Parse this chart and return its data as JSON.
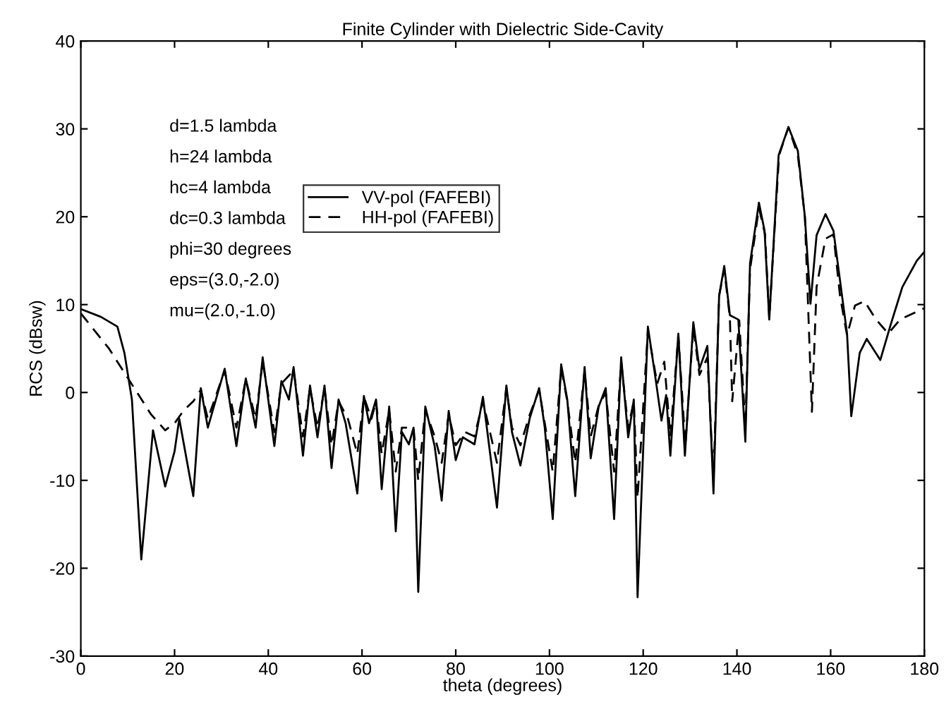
{
  "chart_data": {
    "type": "line",
    "title": "Finite Cylinder with Dielectric Side-Cavity",
    "xlabel": "theta (degrees)",
    "ylabel": "RCS (dBsw)",
    "xlim": [
      0,
      180
    ],
    "ylim": [
      -30,
      40
    ],
    "xticks": [
      0,
      20,
      40,
      60,
      80,
      100,
      120,
      140,
      160,
      180
    ],
    "yticks": [
      -30,
      -20,
      -10,
      0,
      10,
      20,
      30,
      40
    ],
    "grid": false,
    "legend": "top",
    "marker": "none",
    "annotations": [
      "d=1.5 lambda",
      "h=24 lambda",
      "hc=4 lambda",
      "dc=0.3 lambda",
      "phi=30 degrees",
      "eps=(3.0,-2.0)",
      "mu=(2.0,-1.0)"
    ],
    "series": [
      {
        "name": "VV-pol (FAFEBI)",
        "color": "#000000",
        "line_style": "solid",
        "x": [
          0,
          4.3,
          7.8,
          9.3,
          10.9,
          12.9,
          15.4,
          18,
          20,
          21,
          24,
          25.6,
          27.1,
          30.7,
          33.2,
          35.2,
          37.3,
          38.8,
          41.3,
          42.8,
          44.4,
          45.4,
          47.4,
          48.9,
          50.5,
          52,
          53.5,
          55,
          56.5,
          59,
          60.4,
          61.5,
          63,
          64.2,
          65.8,
          67.2,
          68.5,
          70,
          71,
          72,
          73.5,
          75.5,
          77,
          78.5,
          80,
          81.5,
          84,
          85.8,
          88.8,
          90.8,
          92,
          93.8,
          95.8,
          97.8,
          99,
          100.7,
          102.5,
          103.8,
          105.5,
          107.5,
          108.8,
          110.5,
          112,
          113.8,
          115.3,
          116.8,
          118,
          118.8,
          121,
          122.5,
          123.9,
          124.9,
          125.8,
          127.5,
          128.9,
          130.7,
          132,
          133.7,
          135,
          136.2,
          137.3,
          138.5,
          140.3,
          141.8,
          142.8,
          144.7,
          145.9,
          146.9,
          148.9,
          151,
          153,
          154.5,
          155.7,
          157,
          158.9,
          160.6,
          163.5,
          164.4,
          166.2,
          167.7,
          170.6,
          172.8,
          175.3,
          178.4,
          180
        ],
        "values": [
          9.5,
          8.6,
          7.5,
          4.5,
          -0.8,
          -19,
          -4.3,
          -10.7,
          -6.7,
          -3,
          -11.8,
          0.5,
          -4,
          2.7,
          -6.1,
          1.6,
          -4,
          4,
          -6.1,
          1.3,
          -0.8,
          2.9,
          -7.2,
          0.8,
          -5.1,
          0.8,
          -8.6,
          -0.8,
          -3.5,
          -11.5,
          -0.4,
          -3.5,
          -0.8,
          -11,
          -1.6,
          -15.8,
          -4.5,
          -5.9,
          -4,
          -22.7,
          -1.6,
          -6.1,
          -12.3,
          -2.1,
          -7.7,
          -5.1,
          -5.9,
          -0.5,
          -13.1,
          0.8,
          -4.5,
          -8.3,
          -2.9,
          0.5,
          -4,
          -14.4,
          3.2,
          -0.8,
          -11.8,
          2.9,
          -7.5,
          -1.6,
          0.5,
          -14.4,
          4,
          -5.1,
          -0.8,
          -23.3,
          7.5,
          2.1,
          -3.2,
          -0.3,
          -7.2,
          6.7,
          -7.2,
          8,
          2.7,
          5.3,
          -11.5,
          11,
          14.4,
          8.8,
          8.3,
          -5.6,
          14.7,
          21.6,
          18.4,
          8.3,
          27,
          30.2,
          27.5,
          20,
          10.1,
          17.9,
          20.3,
          18.4,
          6.7,
          -2.7,
          4.5,
          6.1,
          3.7,
          7.7,
          12,
          15,
          16
        ]
      },
      {
        "name": "HH-pol (FAFEBI)",
        "color": "#000000",
        "line_style": "dashed",
        "x": [
          0,
          3,
          6,
          9,
          12,
          15,
          18,
          20,
          22,
          24,
          25.6,
          27.1,
          30.7,
          33.2,
          35.2,
          37.3,
          38.8,
          41.3,
          42.8,
          45.4,
          47.4,
          48.9,
          50.5,
          52,
          53.5,
          55,
          57,
          59,
          60.4,
          62,
          63,
          64.2,
          65.8,
          67.2,
          68.5,
          71,
          72,
          73.5,
          75.5,
          77,
          78.5,
          80,
          82,
          84,
          85.8,
          88.8,
          90.8,
          92,
          93.8,
          95.8,
          97.8,
          99,
          100.7,
          102.5,
          103.8,
          105.5,
          107.5,
          108.8,
          110.5,
          112,
          113.8,
          115.3,
          116.8,
          118,
          118.8,
          121,
          123,
          124.5,
          125.8,
          127.5,
          129,
          130.7,
          132,
          133.7,
          135,
          136.2,
          137.3,
          138.5,
          139,
          140.5,
          141.8,
          142.8,
          144.7,
          146,
          146.9,
          149,
          151,
          153,
          154.5,
          156,
          157,
          158.9,
          160.6,
          162,
          163.5,
          165.2,
          167.2,
          169.7,
          172.3,
          174.8,
          180
        ],
        "values": [
          9,
          7,
          5,
          2.5,
          0,
          -2.5,
          -4.3,
          -3.5,
          -2,
          -1,
          0.3,
          -3,
          2.5,
          -4,
          1.5,
          -3,
          3.5,
          -4.5,
          1,
          2.5,
          -5,
          0.5,
          -4,
          0.5,
          -6,
          -1,
          -3,
          -7,
          -0.5,
          -3,
          -1,
          -7,
          -2,
          -9,
          -4,
          -4,
          -10,
          -2,
          -5,
          -8,
          -2.5,
          -6,
          -4.5,
          -5,
          -1,
          -8,
          0.5,
          -4,
          -6,
          -2.5,
          0.3,
          -3.5,
          -9,
          2.8,
          -1,
          -8,
          2.5,
          -5,
          -1.5,
          0,
          -9,
          3.5,
          -4,
          -1,
          -12,
          7,
          1,
          3.5,
          -5,
          6.5,
          -6,
          7.5,
          2,
          4,
          -10,
          11,
          14,
          8.5,
          -1,
          8.2,
          -4,
          14,
          21,
          18,
          8.5,
          27,
          30.2,
          27,
          20,
          -2.2,
          12,
          17.5,
          18,
          11,
          6.5,
          9.9,
          10.4,
          8.3,
          6.7,
          8.3,
          9.6
        ]
      }
    ]
  }
}
